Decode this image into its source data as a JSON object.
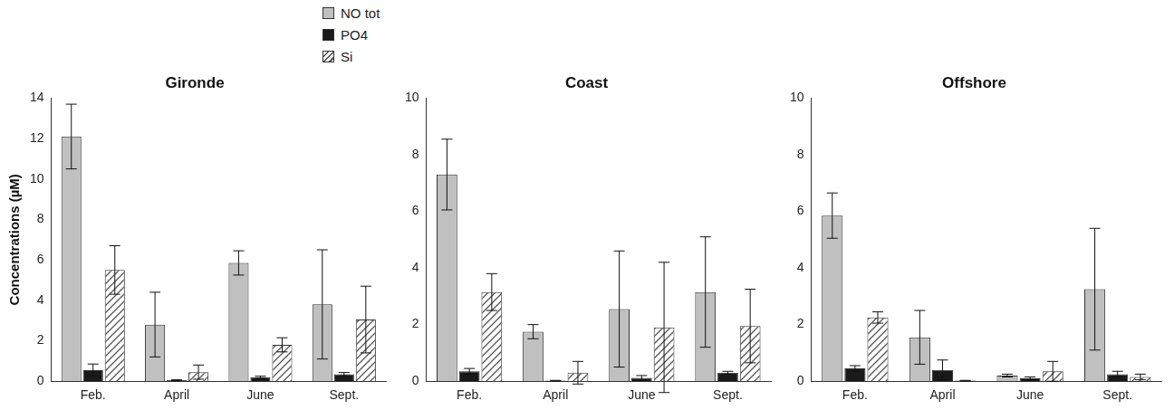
{
  "chart_data": [
    {
      "type": "bar",
      "title": "Gironde",
      "ylabel": "Concentrations (µM)",
      "legend": "top",
      "grid": false,
      "categories": [
        "Feb.",
        "April",
        "June",
        "Sept."
      ],
      "ylim": [
        0,
        14
      ],
      "yticks": [
        0,
        2,
        4,
        6,
        8,
        10,
        12,
        14
      ],
      "series": [
        {
          "name": "NO tot",
          "color": "#c0c0c0",
          "values": [
            12.1,
            2.8,
            5.85,
            3.8
          ],
          "errors": [
            1.6,
            1.6,
            0.6,
            2.7
          ]
        },
        {
          "name": "PO4",
          "color": "#1a1a1a",
          "values": [
            0.55,
            0.05,
            0.2,
            0.35
          ],
          "errors": [
            0.3,
            0.02,
            0.05,
            0.08
          ]
        },
        {
          "name": "Si",
          "color": "#ffffff",
          "marker": "hatch",
          "values": [
            5.5,
            0.45,
            1.8,
            3.05
          ],
          "errors": [
            1.2,
            0.35,
            0.35,
            1.65
          ]
        }
      ]
    },
    {
      "type": "bar",
      "title": "Coast",
      "grid": false,
      "categories": [
        "Feb.",
        "April",
        "June",
        "Sept."
      ],
      "ylim": [
        0,
        10
      ],
      "yticks": [
        0,
        2,
        4,
        6,
        8,
        10
      ],
      "series": [
        {
          "name": "NO tot",
          "color": "#c0c0c0",
          "values": [
            7.3,
            1.75,
            2.55,
            3.15
          ],
          "errors": [
            1.25,
            0.25,
            2.05,
            1.95
          ]
        },
        {
          "name": "PO4",
          "color": "#1a1a1a",
          "values": [
            0.35,
            0.02,
            0.12,
            0.3
          ],
          "errors": [
            0.1,
            0.01,
            0.08,
            0.05
          ]
        },
        {
          "name": "Si",
          "color": "#ffffff",
          "marker": "hatch",
          "values": [
            3.15,
            0.3,
            1.9,
            1.95
          ],
          "errors": [
            0.65,
            0.4,
            2.3,
            1.3
          ]
        }
      ]
    },
    {
      "type": "bar",
      "title": "Offshore",
      "grid": false,
      "categories": [
        "Feb.",
        "April",
        "June",
        "Sept."
      ],
      "ylim": [
        0,
        10
      ],
      "yticks": [
        0,
        2,
        4,
        6,
        8,
        10
      ],
      "series": [
        {
          "name": "NO tot",
          "color": "#c0c0c0",
          "values": [
            5.85,
            1.55,
            0.2,
            3.25
          ],
          "errors": [
            0.8,
            0.95,
            0.05,
            2.15
          ]
        },
        {
          "name": "PO4",
          "color": "#1a1a1a",
          "values": [
            0.45,
            0.4,
            0.1,
            0.25
          ],
          "errors": [
            0.1,
            0.35,
            0.05,
            0.1
          ]
        },
        {
          "name": "Si",
          "color": "#ffffff",
          "marker": "hatch",
          "values": [
            2.25,
            0.02,
            0.35,
            0.15
          ],
          "errors": [
            0.2,
            0.01,
            0.35,
            0.1
          ]
        }
      ]
    }
  ]
}
